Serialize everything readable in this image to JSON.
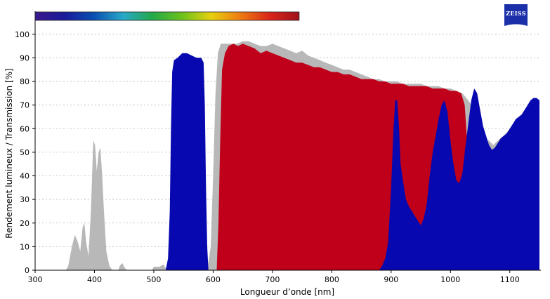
{
  "logo": {
    "text": "ZEISS",
    "color": "#1a2fa8"
  },
  "chart_data": {
    "type": "area",
    "title": "",
    "xlabel": "Longueur d’onde [nm]",
    "ylabel": "Rendement lumineux / Transmission [%]",
    "xlim": [
      300,
      1150
    ],
    "ylim": [
      0,
      105
    ],
    "xticks": [
      300,
      400,
      500,
      600,
      700,
      800,
      900,
      1000,
      1100
    ],
    "yticks": [
      0,
      10,
      20,
      30,
      40,
      50,
      60,
      70,
      80,
      90,
      100
    ],
    "grid": true,
    "spectrum_bar": {
      "x_range": [
        300,
        745
      ],
      "colors": [
        "#3a1a8c",
        "#1a1a9a",
        "#0a4fb0",
        "#2aa8c8",
        "#22a84a",
        "#6cc21c",
        "#e8d010",
        "#ee7a12",
        "#d8261a",
        "#a0101a"
      ]
    },
    "series": [
      {
        "color": "#b8b8b8",
        "points": [
          [
            352,
            0
          ],
          [
            356,
            2
          ],
          [
            362,
            10
          ],
          [
            367,
            15
          ],
          [
            372,
            12
          ],
          [
            376,
            8
          ],
          [
            380,
            18
          ],
          [
            383,
            20
          ],
          [
            386,
            12
          ],
          [
            390,
            6
          ],
          [
            394,
            25
          ],
          [
            398,
            55
          ],
          [
            401,
            53
          ],
          [
            404,
            42
          ],
          [
            407,
            50
          ],
          [
            410,
            52
          ],
          [
            413,
            40
          ],
          [
            416,
            25
          ],
          [
            420,
            8
          ],
          [
            425,
            2
          ],
          [
            430,
            0
          ],
          [
            440,
            0
          ],
          [
            443,
            2
          ],
          [
            447,
            3
          ],
          [
            451,
            1
          ],
          [
            455,
            0
          ],
          [
            497,
            0
          ],
          [
            500,
            1.5
          ],
          [
            510,
            1.5
          ],
          [
            513,
            2
          ],
          [
            516,
            2.5
          ],
          [
            520,
            1
          ],
          [
            524,
            0
          ],
          [
            590,
            0
          ],
          [
            596,
            10
          ],
          [
            600,
            40
          ],
          [
            604,
            75
          ],
          [
            608,
            92
          ],
          [
            613,
            96
          ],
          [
            620,
            96
          ],
          [
            630,
            96
          ],
          [
            640,
            96
          ],
          [
            650,
            97
          ],
          [
            660,
            97
          ],
          [
            670,
            96
          ],
          [
            680,
            95
          ],
          [
            690,
            95
          ],
          [
            700,
            96
          ],
          [
            710,
            95
          ],
          [
            720,
            94
          ],
          [
            730,
            93
          ],
          [
            740,
            92
          ],
          [
            750,
            93
          ],
          [
            760,
            91
          ],
          [
            770,
            90
          ],
          [
            780,
            89
          ],
          [
            790,
            88
          ],
          [
            800,
            87
          ],
          [
            810,
            86
          ],
          [
            820,
            85
          ],
          [
            830,
            85
          ],
          [
            840,
            84
          ],
          [
            850,
            83
          ],
          [
            860,
            82
          ],
          [
            870,
            81
          ],
          [
            880,
            81
          ],
          [
            890,
            80
          ],
          [
            900,
            80
          ],
          [
            910,
            80
          ],
          [
            920,
            79
          ],
          [
            930,
            79
          ],
          [
            940,
            79
          ],
          [
            950,
            79
          ],
          [
            960,
            78
          ],
          [
            970,
            78
          ],
          [
            980,
            78
          ],
          [
            990,
            77
          ],
          [
            1000,
            77
          ],
          [
            1010,
            76
          ],
          [
            1020,
            75
          ],
          [
            1030,
            72
          ],
          [
            1040,
            68
          ],
          [
            1050,
            60
          ],
          [
            1058,
            55
          ],
          [
            1065,
            55
          ],
          [
            1072,
            53
          ],
          [
            1080,
            55
          ],
          [
            1090,
            57
          ],
          [
            1100,
            60
          ],
          [
            1110,
            63
          ],
          [
            1120,
            66
          ],
          [
            1130,
            69
          ],
          [
            1140,
            71
          ],
          [
            1150,
            72
          ],
          [
            1150,
            0
          ]
        ]
      },
      {
        "color": "#c0001a",
        "points": [
          [
            606,
            0
          ],
          [
            609,
            20
          ],
          [
            612,
            55
          ],
          [
            615,
            85
          ],
          [
            620,
            92
          ],
          [
            626,
            95
          ],
          [
            634,
            96
          ],
          [
            642,
            95
          ],
          [
            650,
            96
          ],
          [
            660,
            95
          ],
          [
            670,
            94
          ],
          [
            680,
            92
          ],
          [
            690,
            93
          ],
          [
            700,
            92
          ],
          [
            710,
            91
          ],
          [
            720,
            90
          ],
          [
            730,
            89
          ],
          [
            740,
            88
          ],
          [
            750,
            88
          ],
          [
            760,
            87
          ],
          [
            770,
            86
          ],
          [
            780,
            86
          ],
          [
            790,
            85
          ],
          [
            800,
            84
          ],
          [
            810,
            84
          ],
          [
            820,
            83
          ],
          [
            830,
            83
          ],
          [
            840,
            82
          ],
          [
            850,
            81
          ],
          [
            860,
            81
          ],
          [
            870,
            81
          ],
          [
            880,
            80
          ],
          [
            890,
            80
          ],
          [
            900,
            79
          ],
          [
            910,
            79
          ],
          [
            920,
            79
          ],
          [
            930,
            78
          ],
          [
            940,
            78
          ],
          [
            950,
            78
          ],
          [
            960,
            78
          ],
          [
            970,
            77
          ],
          [
            980,
            77
          ],
          [
            990,
            77
          ],
          [
            1000,
            76
          ],
          [
            1010,
            76
          ],
          [
            1018,
            75
          ],
          [
            1024,
            70
          ],
          [
            1028,
            55
          ],
          [
            1031,
            30
          ],
          [
            1034,
            8
          ],
          [
            1036,
            0
          ]
        ]
      },
      {
        "color": "#0808b0",
        "points": [
          [
            520,
            0
          ],
          [
            524,
            5
          ],
          [
            527,
            25
          ],
          [
            529,
            60
          ],
          [
            531,
            84
          ],
          [
            534,
            89
          ],
          [
            540,
            90
          ],
          [
            548,
            92
          ],
          [
            556,
            92
          ],
          [
            564,
            91
          ],
          [
            572,
            90
          ],
          [
            580,
            90
          ],
          [
            584,
            88
          ],
          [
            586,
            70
          ],
          [
            588,
            35
          ],
          [
            590,
            10
          ],
          [
            592,
            0
          ],
          [
            880,
            0
          ],
          [
            885,
            2
          ],
          [
            890,
            5
          ],
          [
            895,
            12
          ],
          [
            900,
            35
          ],
          [
            904,
            60
          ],
          [
            907,
            72
          ],
          [
            910,
            72
          ],
          [
            913,
            62
          ],
          [
            916,
            45
          ],
          [
            920,
            38
          ],
          [
            925,
            30
          ],
          [
            930,
            27
          ],
          [
            935,
            25
          ],
          [
            940,
            23
          ],
          [
            945,
            21
          ],
          [
            950,
            19
          ],
          [
            955,
            22
          ],
          [
            960,
            28
          ],
          [
            965,
            40
          ],
          [
            970,
            50
          ],
          [
            975,
            57
          ],
          [
            980,
            64
          ],
          [
            985,
            70
          ],
          [
            990,
            72
          ],
          [
            995,
            67
          ],
          [
            1000,
            55
          ],
          [
            1005,
            45
          ],
          [
            1010,
            38
          ],
          [
            1015,
            37
          ],
          [
            1020,
            41
          ],
          [
            1025,
            52
          ],
          [
            1030,
            62
          ],
          [
            1035,
            72
          ],
          [
            1040,
            77
          ],
          [
            1045,
            75
          ],
          [
            1050,
            68
          ],
          [
            1055,
            61
          ],
          [
            1060,
            57
          ],
          [
            1065,
            53
          ],
          [
            1070,
            51
          ],
          [
            1075,
            52
          ],
          [
            1080,
            54
          ],
          [
            1085,
            56
          ],
          [
            1090,
            57
          ],
          [
            1095,
            58
          ],
          [
            1100,
            60
          ],
          [
            1105,
            62
          ],
          [
            1110,
            64
          ],
          [
            1115,
            65
          ],
          [
            1120,
            66
          ],
          [
            1125,
            68
          ],
          [
            1130,
            70
          ],
          [
            1135,
            72
          ],
          [
            1140,
            73
          ],
          [
            1145,
            73
          ],
          [
            1150,
            72
          ],
          [
            1150,
            0
          ]
        ]
      }
    ]
  }
}
